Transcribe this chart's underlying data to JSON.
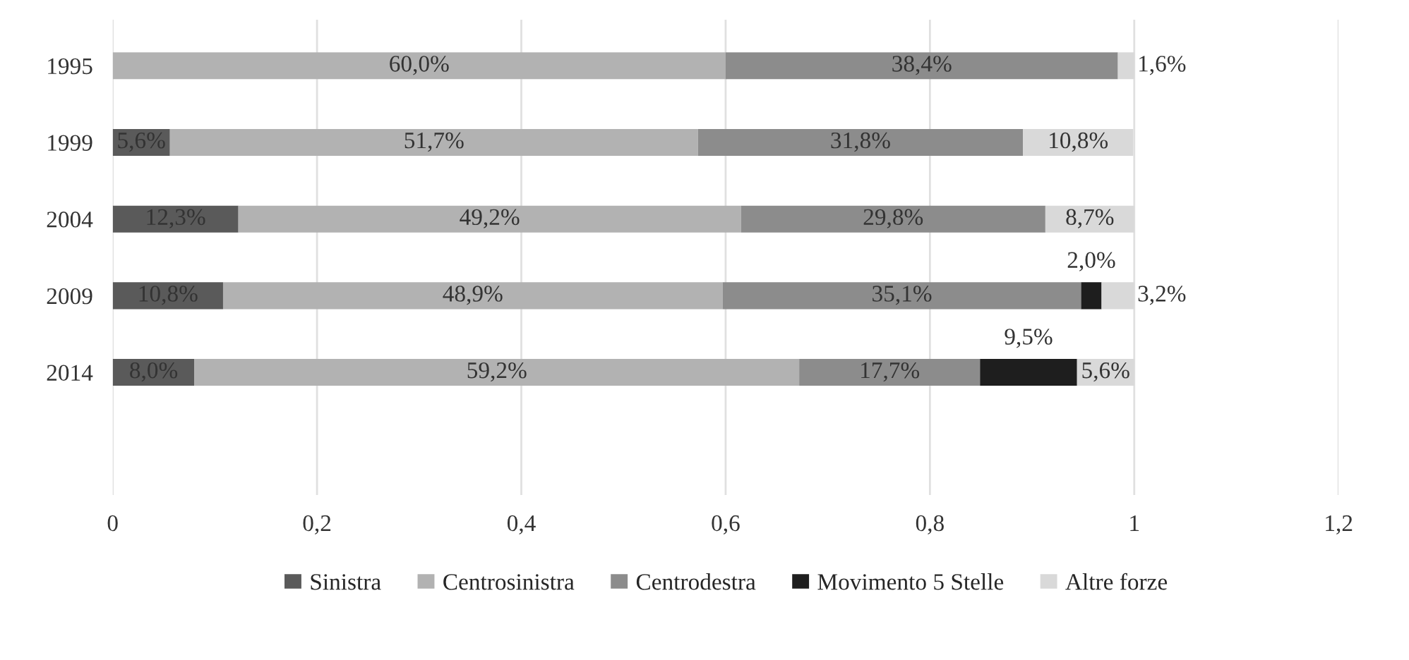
{
  "chart_data": {
    "type": "bar",
    "orientation": "horizontal",
    "stacked": true,
    "categories": [
      "1995",
      "1999",
      "2004",
      "2009",
      "2014"
    ],
    "series": [
      {
        "name": "Sinistra",
        "color": "#5a5a5a",
        "values": [
          null,
          0.056,
          0.123,
          0.108,
          0.08
        ],
        "value_labels": [
          null,
          "5,6%",
          "12,3%",
          "10,8%",
          "8,0%"
        ]
      },
      {
        "name": "Centrosinistra",
        "color": "#b2b2b2",
        "values": [
          0.6,
          0.517,
          0.492,
          0.489,
          0.592
        ],
        "value_labels": [
          "60,0%",
          "51,7%",
          "49,2%",
          "48,9%",
          "59,2%"
        ]
      },
      {
        "name": "Centrodestra",
        "color": "#8c8c8c",
        "values": [
          0.384,
          0.318,
          0.298,
          0.351,
          0.177
        ],
        "value_labels": [
          "38,4%",
          "31,8%",
          "29,8%",
          "35,1%",
          "17,7%"
        ]
      },
      {
        "name": "Movimento 5 Stelle",
        "color": "#1e1e1e",
        "values": [
          null,
          null,
          null,
          0.02,
          0.095
        ],
        "value_labels": [
          null,
          null,
          null,
          "2,0%",
          "9,5%"
        ]
      },
      {
        "name": "Altre forze",
        "color": "#d9d9d9",
        "values": [
          0.016,
          0.108,
          0.087,
          0.032,
          0.056
        ],
        "value_labels": [
          "1,6%",
          "10,8%",
          "8,7%",
          "3,2%",
          "5,6%"
        ]
      }
    ],
    "xlim": [
      0,
      1.2
    ],
    "xticks": [
      {
        "value": 0,
        "label": "0"
      },
      {
        "value": 0.2,
        "label": "0,2"
      },
      {
        "value": 0.4,
        "label": "0,4"
      },
      {
        "value": 0.6,
        "label": "0,6"
      },
      {
        "value": 0.8,
        "label": "0,8"
      },
      {
        "value": 1,
        "label": "1"
      },
      {
        "value": 1.2,
        "label": "1,2"
      }
    ],
    "grid": "x",
    "legend": "bottom"
  }
}
